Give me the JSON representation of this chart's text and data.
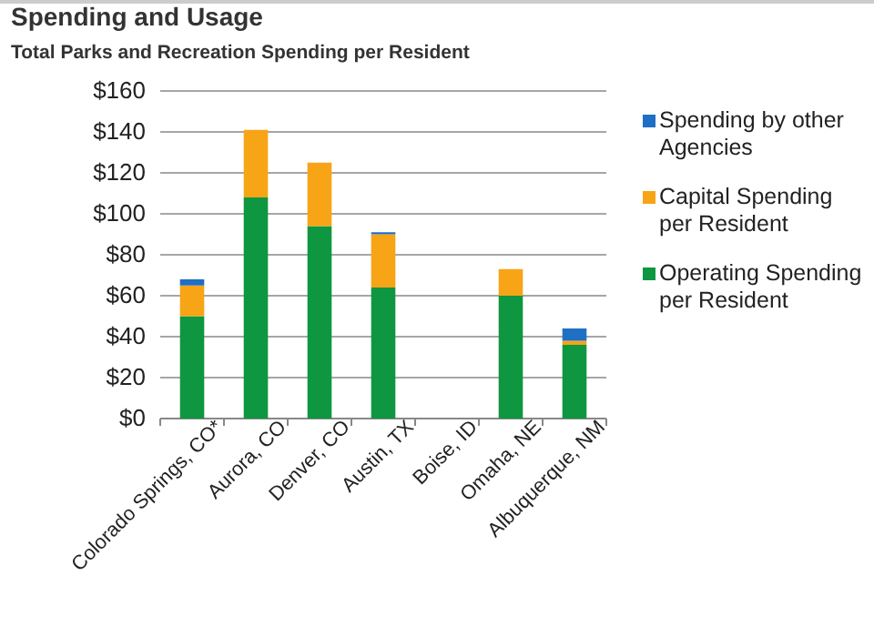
{
  "chart_data": {
    "type": "bar",
    "title": "Spending and Usage",
    "subtitle": "Total Parks and Recreation Spending per Resident",
    "categories": [
      "Colorado Springs, CO*",
      "Aurora, CO",
      "Denver, CO",
      "Austin, TX",
      "Boise, ID",
      "Omaha, NE",
      "Albuquerque, NM"
    ],
    "stacked": true,
    "series": [
      {
        "name": "Operating Spending per Resident",
        "color": "#0f9640",
        "values": [
          50,
          108,
          94,
          64,
          null,
          60,
          36
        ]
      },
      {
        "name": "Capital Spending per Resident",
        "color": "#f7a416",
        "values": [
          15,
          33,
          31,
          26,
          null,
          13,
          2
        ]
      },
      {
        "name": "Spending by other Agencies",
        "color": "#1f6fc5",
        "values": [
          3,
          null,
          null,
          1,
          null,
          null,
          6
        ]
      }
    ],
    "ylim": [
      0,
      160
    ],
    "yticks": [
      {
        "value": 0,
        "label": "$0"
      },
      {
        "value": 20,
        "label": "$20"
      },
      {
        "value": 40,
        "label": "$40"
      },
      {
        "value": 60,
        "label": "$60"
      },
      {
        "value": 80,
        "label": "$80"
      },
      {
        "value": 100,
        "label": "$100"
      },
      {
        "value": 120,
        "label": "$120"
      },
      {
        "value": 140,
        "label": "$140"
      },
      {
        "value": 160,
        "label": "$160"
      }
    ],
    "grid": "y",
    "legend": "right"
  }
}
